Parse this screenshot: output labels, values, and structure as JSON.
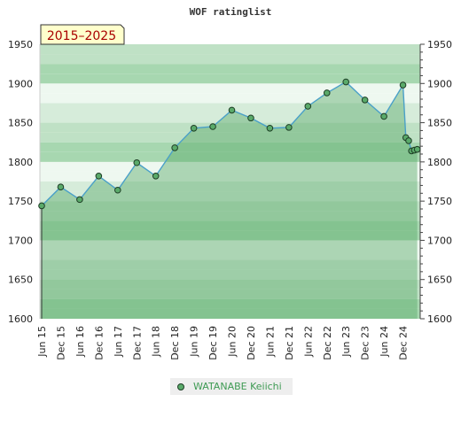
{
  "chart_data": {
    "type": "area",
    "title": "WOF ratinglist",
    "range_label": "2015–2025",
    "ylim": [
      1600,
      1950
    ],
    "yticks": [
      1600,
      1650,
      1700,
      1750,
      1800,
      1850,
      1900,
      1950
    ],
    "xticks": [
      "Jun 15",
      "Dec 15",
      "Jun 16",
      "Dec 16",
      "Jun 17",
      "Dec 17",
      "Jun 18",
      "Dec 18",
      "Jun 19",
      "Dec 19",
      "Jun 20",
      "Dec 20",
      "Jun 21",
      "Dec 21",
      "Jun 22",
      "Dec 22",
      "Jun 23",
      "Dec 23",
      "Jun 24",
      "Dec 24"
    ],
    "series": [
      {
        "name": "WATANABE Keiichi",
        "color": "#5aaa6a",
        "line_color": "#4aa0c8",
        "points": [
          {
            "t": 0.0,
            "y": 1744
          },
          {
            "t": 1.0,
            "y": 1768
          },
          {
            "t": 2.0,
            "y": 1752
          },
          {
            "t": 3.0,
            "y": 1782
          },
          {
            "t": 4.0,
            "y": 1764
          },
          {
            "t": 5.0,
            "y": 1799
          },
          {
            "t": 6.0,
            "y": 1782
          },
          {
            "t": 7.0,
            "y": 1818
          },
          {
            "t": 8.0,
            "y": 1843
          },
          {
            "t": 9.0,
            "y": 1845
          },
          {
            "t": 10.0,
            "y": 1866
          },
          {
            "t": 11.0,
            "y": 1856
          },
          {
            "t": 12.0,
            "y": 1843
          },
          {
            "t": 13.0,
            "y": 1844
          },
          {
            "t": 14.0,
            "y": 1871
          },
          {
            "t": 15.0,
            "y": 1888
          },
          {
            "t": 16.0,
            "y": 1902
          },
          {
            "t": 17.0,
            "y": 1879
          },
          {
            "t": 18.0,
            "y": 1858
          },
          {
            "t": 19.0,
            "y": 1898
          },
          {
            "t": 19.15,
            "y": 1831
          },
          {
            "t": 19.3,
            "y": 1827
          },
          {
            "t": 19.45,
            "y": 1814
          },
          {
            "t": 19.6,
            "y": 1815
          },
          {
            "t": 19.75,
            "y": 1816
          }
        ]
      }
    ],
    "grid": true,
    "legend_position": "bottom"
  }
}
